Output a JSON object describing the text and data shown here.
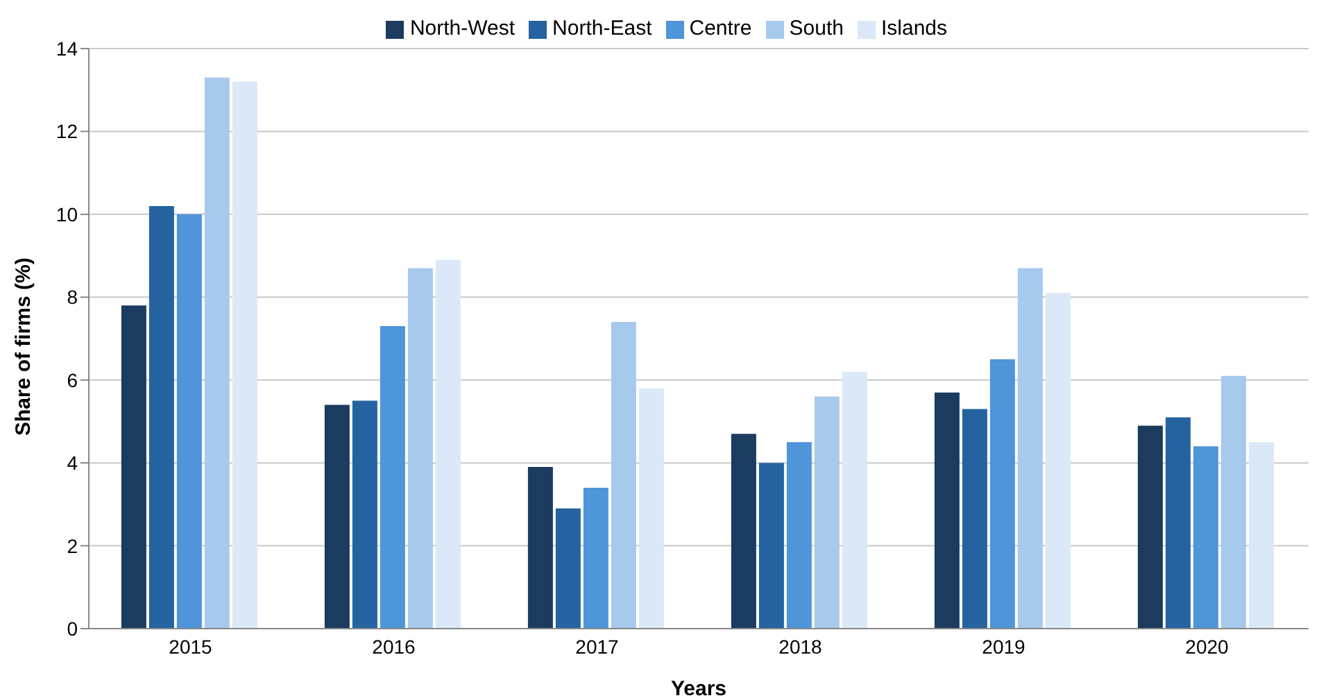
{
  "chart_data": {
    "type": "bar",
    "xlabel": "Years",
    "ylabel": "Share of firms (%)",
    "categories": [
      "2015",
      "2016",
      "2017",
      "2018",
      "2019",
      "2020"
    ],
    "series": [
      {
        "name": "North-West",
        "color": "#1b3b5f",
        "values": [
          7.8,
          5.4,
          3.9,
          4.7,
          5.7,
          4.9
        ]
      },
      {
        "name": "North-East",
        "color": "#2563a0",
        "values": [
          10.2,
          5.5,
          2.9,
          4.0,
          5.3,
          5.1
        ]
      },
      {
        "name": "Centre",
        "color": "#4e95d9",
        "values": [
          10.0,
          7.3,
          3.4,
          4.5,
          6.5,
          4.4
        ]
      },
      {
        "name": "South",
        "color": "#a7c9ec",
        "values": [
          13.3,
          8.7,
          7.4,
          5.6,
          8.7,
          6.1
        ]
      },
      {
        "name": "Islands",
        "color": "#dae8f7",
        "values": [
          13.2,
          8.9,
          5.8,
          6.2,
          8.1,
          4.5
        ]
      }
    ],
    "ylim": [
      0,
      14
    ],
    "yticks": [
      0,
      2,
      4,
      6,
      8,
      10,
      12,
      14
    ],
    "grid": "y",
    "legend": "top"
  }
}
